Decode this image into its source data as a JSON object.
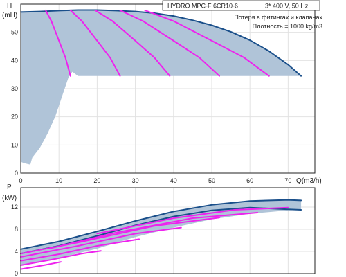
{
  "chart_data": [
    {
      "type": "line",
      "title": "HYDRO MPC-F 6CR10-6",
      "subtitle": "3* 400 V, 50 Hz",
      "annotations": [
        "Потеря в фитингах и клапанах",
        "Плотность = 1000 kg/m3"
      ],
      "ylabel": "H",
      "yunit": "(mH)",
      "xlabel": "Q(m3/h)",
      "xlim": [
        0,
        77
      ],
      "ylim": [
        0,
        60
      ],
      "xticks": [
        0,
        10,
        20,
        30,
        40,
        50,
        60,
        70
      ],
      "yticks": [
        0,
        10,
        20,
        30,
        40,
        50
      ],
      "grid": true,
      "operating_region": {
        "color": "#b0c4d8",
        "upper_boundary": [
          [
            0,
            57.2
          ],
          [
            5,
            57.4
          ],
          [
            10,
            57.7
          ],
          [
            15,
            57.9
          ],
          [
            20,
            57.9
          ],
          [
            25,
            57.7
          ],
          [
            30,
            57.4
          ],
          [
            35,
            56.8
          ],
          [
            40,
            55.8
          ],
          [
            45,
            54.3
          ],
          [
            50,
            52.5
          ],
          [
            55,
            50.2
          ],
          [
            60,
            47.2
          ],
          [
            65,
            43.3
          ],
          [
            70,
            38.5
          ],
          [
            73.4,
            34.5
          ]
        ],
        "lower_boundary": [
          [
            0,
            4
          ],
          [
            1,
            3.5
          ],
          [
            2.5,
            3
          ],
          [
            3,
            5.5
          ],
          [
            5,
            9
          ],
          [
            7,
            14
          ],
          [
            9,
            20
          ],
          [
            11,
            28
          ],
          [
            12.5,
            34
          ],
          [
            13.5,
            36
          ],
          [
            15,
            34.5
          ],
          [
            73.4,
            34.5
          ]
        ]
      },
      "series": [
        {
          "color": "#1a4f8a",
          "points": [
            [
              0,
              57.2
            ],
            [
              5,
              57.4
            ],
            [
              10,
              57.7
            ],
            [
              15,
              57.9
            ],
            [
              20,
              57.9
            ],
            [
              25,
              57.7
            ],
            [
              30,
              57.4
            ],
            [
              35,
              56.8
            ],
            [
              40,
              55.8
            ],
            [
              45,
              54.3
            ],
            [
              50,
              52.5
            ],
            [
              55,
              50.2
            ],
            [
              60,
              47.2
            ],
            [
              65,
              43.3
            ],
            [
              70,
              38.5
            ],
            [
              73.4,
              34.5
            ]
          ]
        },
        {
          "color": "#ee22ee",
          "points": [
            [
              6.5,
              57.8
            ],
            [
              8,
              54
            ],
            [
              10,
              47
            ],
            [
              11.7,
              41
            ],
            [
              13,
              34.5
            ]
          ]
        },
        {
          "color": "#ee22ee",
          "points": [
            [
              13,
              57.8
            ],
            [
              16,
              54
            ],
            [
              20,
              47
            ],
            [
              23.4,
              41
            ],
            [
              26,
              34.5
            ]
          ]
        },
        {
          "color": "#ee22ee",
          "points": [
            [
              19.5,
              57.8
            ],
            [
              24,
              54
            ],
            [
              30,
              47
            ],
            [
              35,
              41
            ],
            [
              39,
              34.5
            ]
          ]
        },
        {
          "color": "#ee22ee",
          "points": [
            [
              26,
              57.8
            ],
            [
              32,
              54
            ],
            [
              40,
              47
            ],
            [
              46.8,
              41
            ],
            [
              52,
              34.5
            ]
          ]
        },
        {
          "color": "#ee22ee",
          "points": [
            [
              32.5,
              57.8
            ],
            [
              40,
              54
            ],
            [
              50,
              47
            ],
            [
              58.5,
              41
            ],
            [
              65,
              34.5
            ]
          ]
        }
      ]
    },
    {
      "type": "line",
      "ylabel": "P",
      "yunit": "(kW)",
      "xlim": [
        0,
        77
      ],
      "ylim": [
        0,
        15.5
      ],
      "yticks": [
        0,
        4,
        8,
        12
      ],
      "grid": true,
      "operating_region": {
        "color": "#b0c4d8",
        "upper_boundary": [
          [
            0,
            4.4
          ],
          [
            10,
            5.8
          ],
          [
            20,
            7.6
          ],
          [
            30,
            9.5
          ],
          [
            40,
            11.2
          ],
          [
            50,
            12.4
          ],
          [
            60,
            13.1
          ],
          [
            70,
            13.3
          ],
          [
            73.4,
            13.2
          ]
        ],
        "lower_boundary": [
          [
            0,
            1.6
          ],
          [
            10,
            2.8
          ],
          [
            20,
            4.5
          ],
          [
            30,
            6.6
          ],
          [
            40,
            8.3
          ],
          [
            50,
            9.8
          ],
          [
            60,
            10.8
          ],
          [
            70,
            11.4
          ],
          [
            73.4,
            11.5
          ]
        ]
      },
      "series": [
        {
          "color": "#1a4f8a",
          "points": [
            [
              0,
              4.4
            ],
            [
              10,
              5.8
            ],
            [
              20,
              7.6
            ],
            [
              30,
              9.5
            ],
            [
              40,
              11.2
            ],
            [
              50,
              12.4
            ],
            [
              60,
              13.1
            ],
            [
              70,
              13.3
            ],
            [
              73.4,
              13.2
            ]
          ]
        },
        {
          "color": "#1a4f8a",
          "points": [
            [
              0,
              3.6
            ],
            [
              10,
              5.0
            ],
            [
              20,
              6.8
            ],
            [
              30,
              8.7
            ],
            [
              40,
              10.3
            ],
            [
              50,
              11.4
            ],
            [
              60,
              11.9
            ],
            [
              70,
              11.6
            ],
            [
              73.4,
              11.5
            ]
          ]
        },
        {
          "color": "#ee22ee",
          "points": [
            [
              0,
              0.8
            ],
            [
              6,
              1.5
            ],
            [
              10.5,
              2.1
            ]
          ]
        },
        {
          "color": "#ee22ee",
          "points": [
            [
              0,
              1.5
            ],
            [
              8,
              2.5
            ],
            [
              16,
              3.6
            ],
            [
              21,
              4.1
            ]
          ]
        },
        {
          "color": "#ee22ee",
          "points": [
            [
              0,
              2.3
            ],
            [
              10,
              3.5
            ],
            [
              20,
              5.0
            ],
            [
              31,
              6.2
            ]
          ]
        },
        {
          "color": "#ee22ee",
          "points": [
            [
              0,
              3.0
            ],
            [
              15,
              5.0
            ],
            [
              30,
              7.2
            ],
            [
              42,
              8.3
            ]
          ]
        },
        {
          "color": "#ee22ee",
          "points": [
            [
              0,
              3.6
            ],
            [
              15,
              5.6
            ],
            [
              35,
              8.6
            ],
            [
              52,
              10.1
            ]
          ]
        },
        {
          "color": "#ee22ee",
          "points": [
            [
              8,
              4.6
            ],
            [
              25,
              7.4
            ],
            [
              45,
              10.0
            ],
            [
              62,
              11.0
            ]
          ]
        },
        {
          "color": "#ee22ee",
          "points": [
            [
              20,
              7.2
            ],
            [
              40,
              10.0
            ],
            [
              56,
              11.5
            ],
            [
              70,
              11.9
            ]
          ]
        }
      ]
    }
  ]
}
